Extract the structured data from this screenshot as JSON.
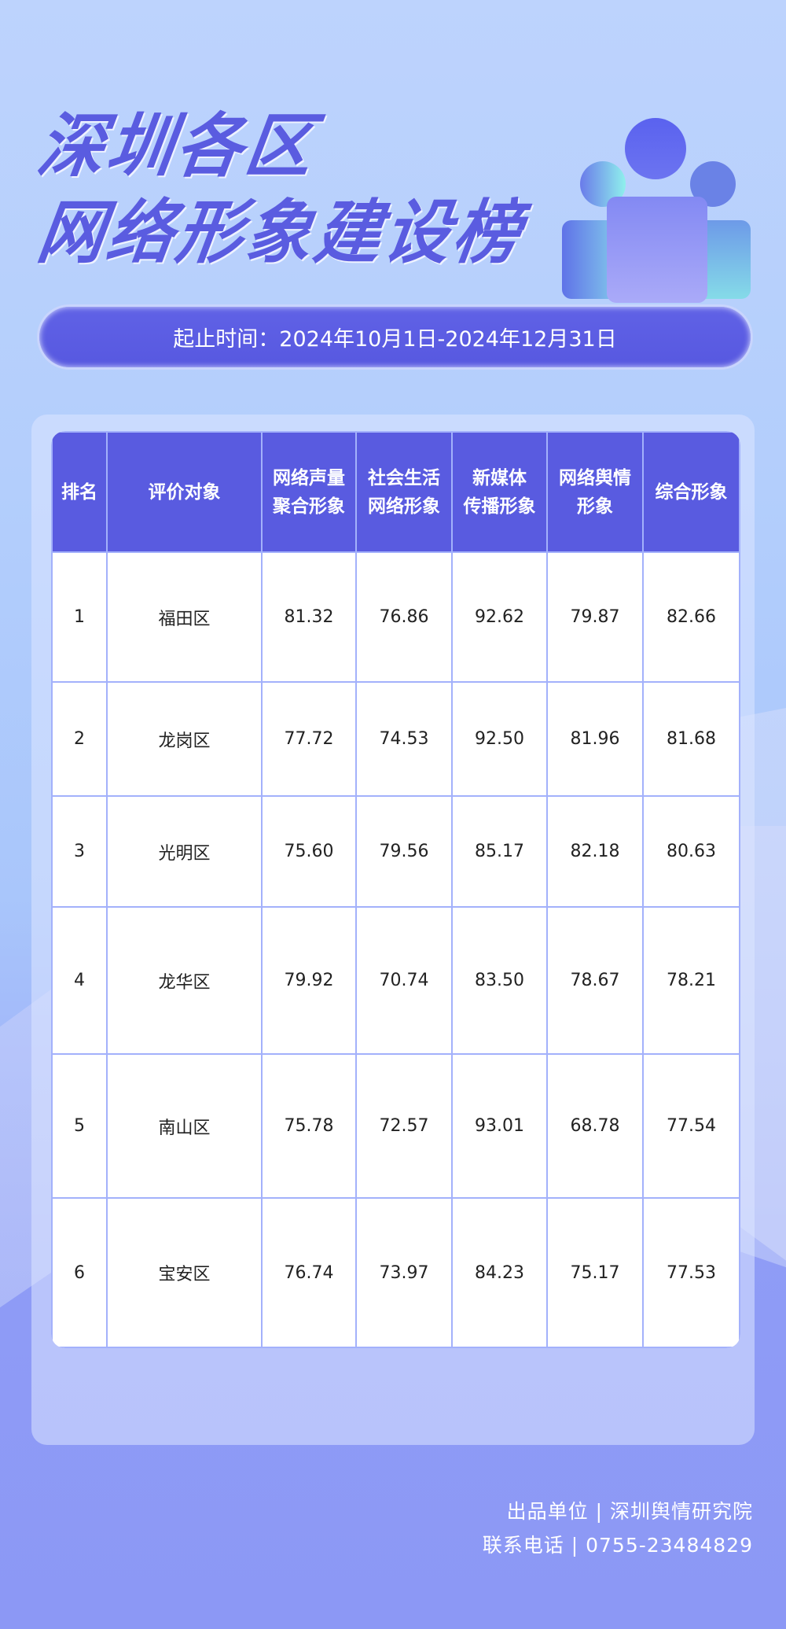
{
  "title": {
    "line1": "深圳各区",
    "line2": "网络形象建设榜"
  },
  "date_range": "起止时间：2024年10月1日-2024年12月31日",
  "colors": {
    "accent": "#595be0",
    "grid": "#a3b1fb"
  },
  "illustration": "people-group-icon",
  "table": {
    "headers": [
      "排名",
      "评价对象",
      "网络声量\n聚合形象",
      "社会生活\n网络形象",
      "新媒体\n传播形象",
      "网络舆情\n形象",
      "综合形象"
    ],
    "rows": [
      [
        "1",
        "福田区",
        "81.32",
        "76.86",
        "92.62",
        "79.87",
        "82.66"
      ],
      [
        "2",
        "龙岗区",
        "77.72",
        "74.53",
        "92.50",
        "81.96",
        "81.68"
      ],
      [
        "3",
        "光明区",
        "75.60",
        "79.56",
        "85.17",
        "82.18",
        "80.63"
      ],
      [
        "4",
        "龙华区",
        "79.92",
        "70.74",
        "83.50",
        "78.67",
        "78.21"
      ],
      [
        "5",
        "南山区",
        "75.78",
        "72.57",
        "93.01",
        "68.78",
        "77.54"
      ],
      [
        "6",
        "宝安区",
        "76.74",
        "73.97",
        "84.23",
        "75.17",
        "77.53"
      ]
    ]
  },
  "footer": {
    "publisher": "出品单位 | 深圳舆情研究院",
    "contact": "联系电话 | 0755-23484829"
  }
}
